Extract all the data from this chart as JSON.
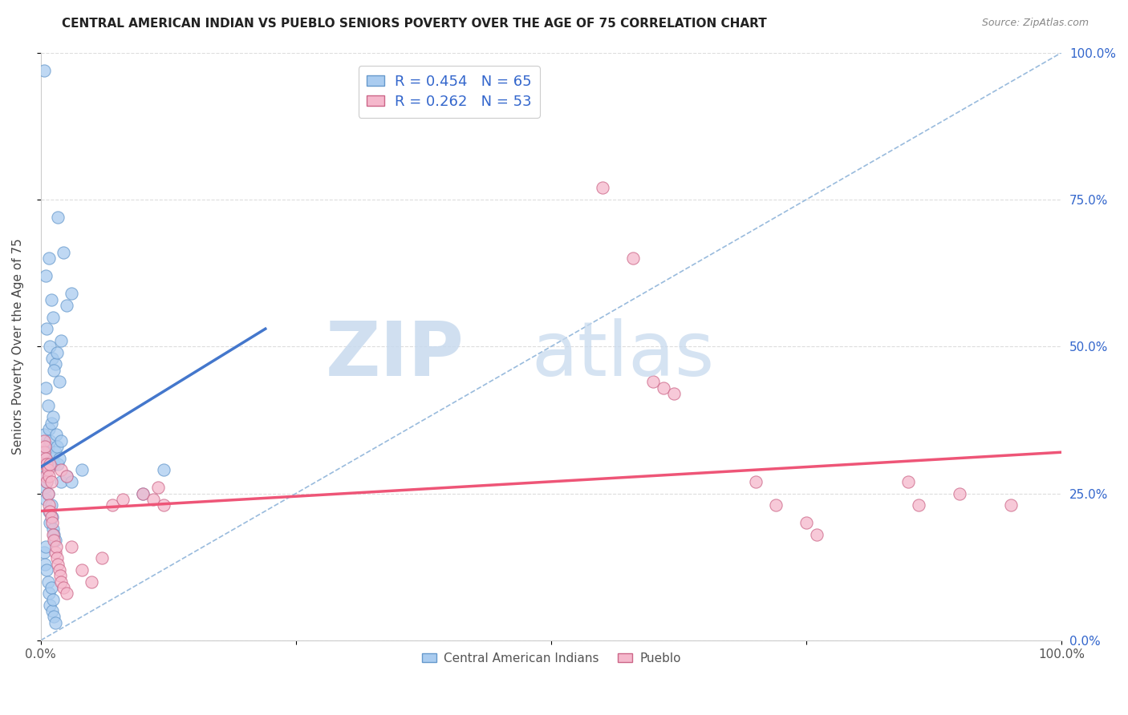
{
  "title": "CENTRAL AMERICAN INDIAN VS PUEBLO SENIORS POVERTY OVER THE AGE OF 75 CORRELATION CHART",
  "source": "Source: ZipAtlas.com",
  "ylabel": "Seniors Poverty Over the Age of 75",
  "xlim": [
    0,
    1
  ],
  "ylim": [
    0,
    1
  ],
  "legend_text_color": "#3366cc",
  "blue_color": "#aaccf0",
  "pink_color": "#f5b8cc",
  "line_blue": "#4477cc",
  "line_pink": "#ee5577",
  "diagonal_color": "#99bbdd",
  "blue_points": [
    [
      0.003,
      0.97
    ],
    [
      0.022,
      0.66
    ],
    [
      0.017,
      0.72
    ],
    [
      0.025,
      0.57
    ],
    [
      0.03,
      0.59
    ],
    [
      0.005,
      0.62
    ],
    [
      0.008,
      0.65
    ],
    [
      0.01,
      0.58
    ],
    [
      0.012,
      0.55
    ],
    [
      0.006,
      0.53
    ],
    [
      0.009,
      0.5
    ],
    [
      0.011,
      0.48
    ],
    [
      0.014,
      0.47
    ],
    [
      0.005,
      0.43
    ],
    [
      0.007,
      0.4
    ],
    [
      0.013,
      0.46
    ],
    [
      0.016,
      0.49
    ],
    [
      0.018,
      0.44
    ],
    [
      0.02,
      0.51
    ],
    [
      0.003,
      0.35
    ],
    [
      0.004,
      0.32
    ],
    [
      0.006,
      0.3
    ],
    [
      0.007,
      0.33
    ],
    [
      0.008,
      0.36
    ],
    [
      0.009,
      0.34
    ],
    [
      0.01,
      0.37
    ],
    [
      0.011,
      0.31
    ],
    [
      0.012,
      0.38
    ],
    [
      0.013,
      0.3
    ],
    [
      0.014,
      0.32
    ],
    [
      0.015,
      0.35
    ],
    [
      0.016,
      0.33
    ],
    [
      0.017,
      0.3
    ],
    [
      0.018,
      0.31
    ],
    [
      0.02,
      0.34
    ],
    [
      0.003,
      0.28
    ],
    [
      0.004,
      0.26
    ],
    [
      0.005,
      0.24
    ],
    [
      0.006,
      0.27
    ],
    [
      0.007,
      0.25
    ],
    [
      0.008,
      0.22
    ],
    [
      0.009,
      0.2
    ],
    [
      0.01,
      0.23
    ],
    [
      0.011,
      0.21
    ],
    [
      0.012,
      0.19
    ],
    [
      0.013,
      0.18
    ],
    [
      0.014,
      0.17
    ],
    [
      0.003,
      0.15
    ],
    [
      0.004,
      0.13
    ],
    [
      0.005,
      0.16
    ],
    [
      0.006,
      0.12
    ],
    [
      0.007,
      0.1
    ],
    [
      0.008,
      0.08
    ],
    [
      0.009,
      0.06
    ],
    [
      0.01,
      0.09
    ],
    [
      0.011,
      0.05
    ],
    [
      0.012,
      0.07
    ],
    [
      0.013,
      0.04
    ],
    [
      0.014,
      0.03
    ],
    [
      0.02,
      0.27
    ],
    [
      0.025,
      0.28
    ],
    [
      0.03,
      0.27
    ],
    [
      0.04,
      0.29
    ],
    [
      0.1,
      0.25
    ],
    [
      0.12,
      0.29
    ]
  ],
  "pink_points": [
    [
      0.003,
      0.34
    ],
    [
      0.004,
      0.3
    ],
    [
      0.005,
      0.28
    ],
    [
      0.006,
      0.27
    ],
    [
      0.007,
      0.25
    ],
    [
      0.008,
      0.23
    ],
    [
      0.009,
      0.22
    ],
    [
      0.01,
      0.21
    ],
    [
      0.011,
      0.2
    ],
    [
      0.012,
      0.18
    ],
    [
      0.013,
      0.17
    ],
    [
      0.014,
      0.15
    ],
    [
      0.015,
      0.16
    ],
    [
      0.016,
      0.14
    ],
    [
      0.017,
      0.13
    ],
    [
      0.018,
      0.12
    ],
    [
      0.019,
      0.11
    ],
    [
      0.02,
      0.1
    ],
    [
      0.022,
      0.09
    ],
    [
      0.025,
      0.08
    ],
    [
      0.003,
      0.32
    ],
    [
      0.004,
      0.33
    ],
    [
      0.005,
      0.31
    ],
    [
      0.006,
      0.3
    ],
    [
      0.007,
      0.29
    ],
    [
      0.008,
      0.28
    ],
    [
      0.009,
      0.3
    ],
    [
      0.01,
      0.27
    ],
    [
      0.02,
      0.29
    ],
    [
      0.025,
      0.28
    ],
    [
      0.03,
      0.16
    ],
    [
      0.04,
      0.12
    ],
    [
      0.05,
      0.1
    ],
    [
      0.06,
      0.14
    ],
    [
      0.07,
      0.23
    ],
    [
      0.08,
      0.24
    ],
    [
      0.1,
      0.25
    ],
    [
      0.11,
      0.24
    ],
    [
      0.115,
      0.26
    ],
    [
      0.12,
      0.23
    ],
    [
      0.55,
      0.77
    ],
    [
      0.58,
      0.65
    ],
    [
      0.6,
      0.44
    ],
    [
      0.61,
      0.43
    ],
    [
      0.62,
      0.42
    ],
    [
      0.7,
      0.27
    ],
    [
      0.72,
      0.23
    ],
    [
      0.75,
      0.2
    ],
    [
      0.76,
      0.18
    ],
    [
      0.85,
      0.27
    ],
    [
      0.86,
      0.23
    ],
    [
      0.9,
      0.25
    ],
    [
      0.95,
      0.23
    ]
  ],
  "blue_line_x": [
    0.0,
    0.22
  ],
  "blue_line_y": [
    0.295,
    0.53
  ],
  "pink_line_x": [
    0.0,
    1.0
  ],
  "pink_line_y": [
    0.22,
    0.32
  ],
  "diag_line_x": [
    0.0,
    1.0
  ],
  "diag_line_y": [
    0.0,
    1.0
  ]
}
